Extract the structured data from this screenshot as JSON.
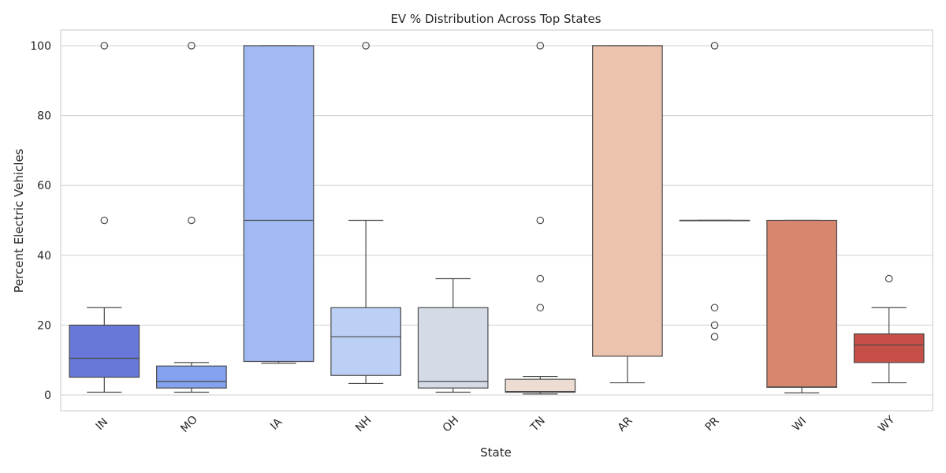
{
  "chart_data": {
    "type": "box",
    "title": "EV % Distribution Across Top States",
    "xlabel": "State",
    "ylabel": "Percent Electric Vehicles",
    "ylim": [
      -4.5,
      104.5
    ],
    "yticks": [
      0,
      20,
      40,
      60,
      80,
      100
    ],
    "grid": true,
    "categories": [
      "IN",
      "MO",
      "IA",
      "NH",
      "OH",
      "TN",
      "AR",
      "PR",
      "WI",
      "WY"
    ],
    "boxes": [
      {
        "category": "IN",
        "color": "#6778d8",
        "whisker_low": 0.8,
        "q1": 5.1,
        "median": 10.5,
        "q3": 20.0,
        "whisker_high": 25.0,
        "outliers": [
          50,
          100
        ]
      },
      {
        "category": "MO",
        "color": "#84a2f0",
        "whisker_low": 0.8,
        "q1": 2.0,
        "median": 3.9,
        "q3": 8.3,
        "whisker_high": 9.3,
        "outliers": [
          50,
          100
        ]
      },
      {
        "category": "IA",
        "color": "#a1baf4",
        "whisker_low": 9.1,
        "q1": 9.6,
        "median": 50.0,
        "q3": 100.0,
        "whisker_high": 100.0,
        "outliers": []
      },
      {
        "category": "NH",
        "color": "#bcd0f5",
        "whisker_low": 3.3,
        "q1": 5.6,
        "median": 16.7,
        "q3": 25.0,
        "whisker_high": 50.0,
        "outliers": [
          100
        ]
      },
      {
        "category": "OH",
        "color": "#d4dbe6",
        "whisker_low": 0.8,
        "q1": 2.0,
        "median": 3.9,
        "q3": 25.0,
        "whisker_high": 33.3,
        "outliers": []
      },
      {
        "category": "TN",
        "color": "#ecdcd2",
        "whisker_low": 0.3,
        "q1": 0.8,
        "median": 1.0,
        "q3": 4.5,
        "whisker_high": 5.3,
        "outliers": [
          25,
          33.3,
          50,
          100
        ]
      },
      {
        "category": "AR",
        "color": "#ecc4ae",
        "whisker_low": 3.5,
        "q1": 11.1,
        "median": 100.0,
        "q3": 100.0,
        "whisker_high": 100.0,
        "outliers": []
      },
      {
        "category": "PR",
        "color": "#e9a48a",
        "whisker_low": 50.0,
        "q1": 50.0,
        "median": 50.0,
        "q3": 50.0,
        "whisker_high": 50.0,
        "outliers": [
          16.7,
          20,
          25,
          100
        ]
      },
      {
        "category": "WI",
        "color": "#d8876f",
        "whisker_low": 0.6,
        "q1": 2.2,
        "median": 2.3,
        "q3": 50.0,
        "whisker_high": 50.0,
        "outliers": []
      },
      {
        "category": "WY",
        "color": "#c64f47",
        "whisker_low": 3.5,
        "q1": 9.3,
        "median": 14.3,
        "q3": 17.5,
        "whisker_high": 25.0,
        "outliers": [
          33.3
        ]
      }
    ]
  }
}
